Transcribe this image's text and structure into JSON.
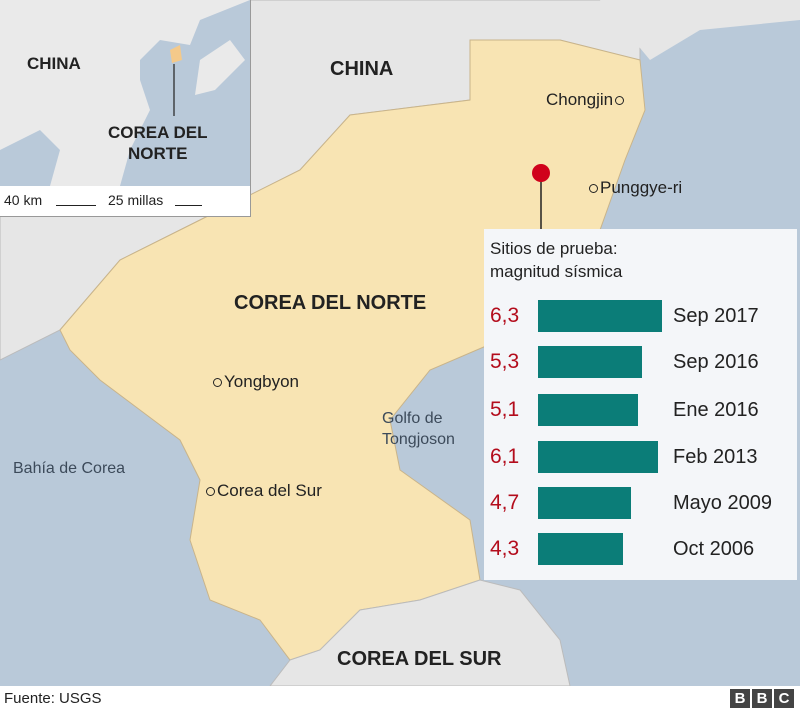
{
  "map": {
    "countries": {
      "china": "CHINA",
      "north_korea": "COREA DEL NORTE",
      "south_korea": "COREA DEL SUR"
    },
    "cities": [
      "Chongjin",
      "Punggye-ri",
      "Yongbyon",
      "Corea del Sur"
    ],
    "seas": {
      "bay": "Bahía de Corea",
      "gulf_line1": "Golfo de",
      "gulf_line2": "Tongjoson"
    },
    "test_site_marker_color": "#d0021b",
    "colors": {
      "sea": "#b9c9d9",
      "north_korea": "#f8e4b3",
      "other_land": "#e6e6e6"
    }
  },
  "inset": {
    "china": "CHINA",
    "nk_line1": "COREA DEL",
    "nk_line2": "NORTE",
    "scale_km": "40 km",
    "scale_miles": "25 millas"
  },
  "panel": {
    "title_line1": "Sitios de prueba:",
    "title_line2": "magnitud sísmica",
    "bar_color": "#0b7d78",
    "value_color": "#b30c1c"
  },
  "chart_data": {
    "type": "bar",
    "orientation": "horizontal",
    "title": "Sitios de prueba: magnitud sísmica",
    "categories": [
      "Sep 2017",
      "Sep 2016",
      "Ene 2016",
      "Feb 2013",
      "Mayo 2009",
      "Oct 2006"
    ],
    "values": [
      6.3,
      5.3,
      5.1,
      6.1,
      4.7,
      4.3
    ],
    "value_labels": [
      "6,3",
      "5,3",
      "5,1",
      "6,1",
      "4,7",
      "4,3"
    ]
  },
  "footer": {
    "source": "Fuente: USGS",
    "logo": [
      "B",
      "B",
      "C"
    ]
  }
}
